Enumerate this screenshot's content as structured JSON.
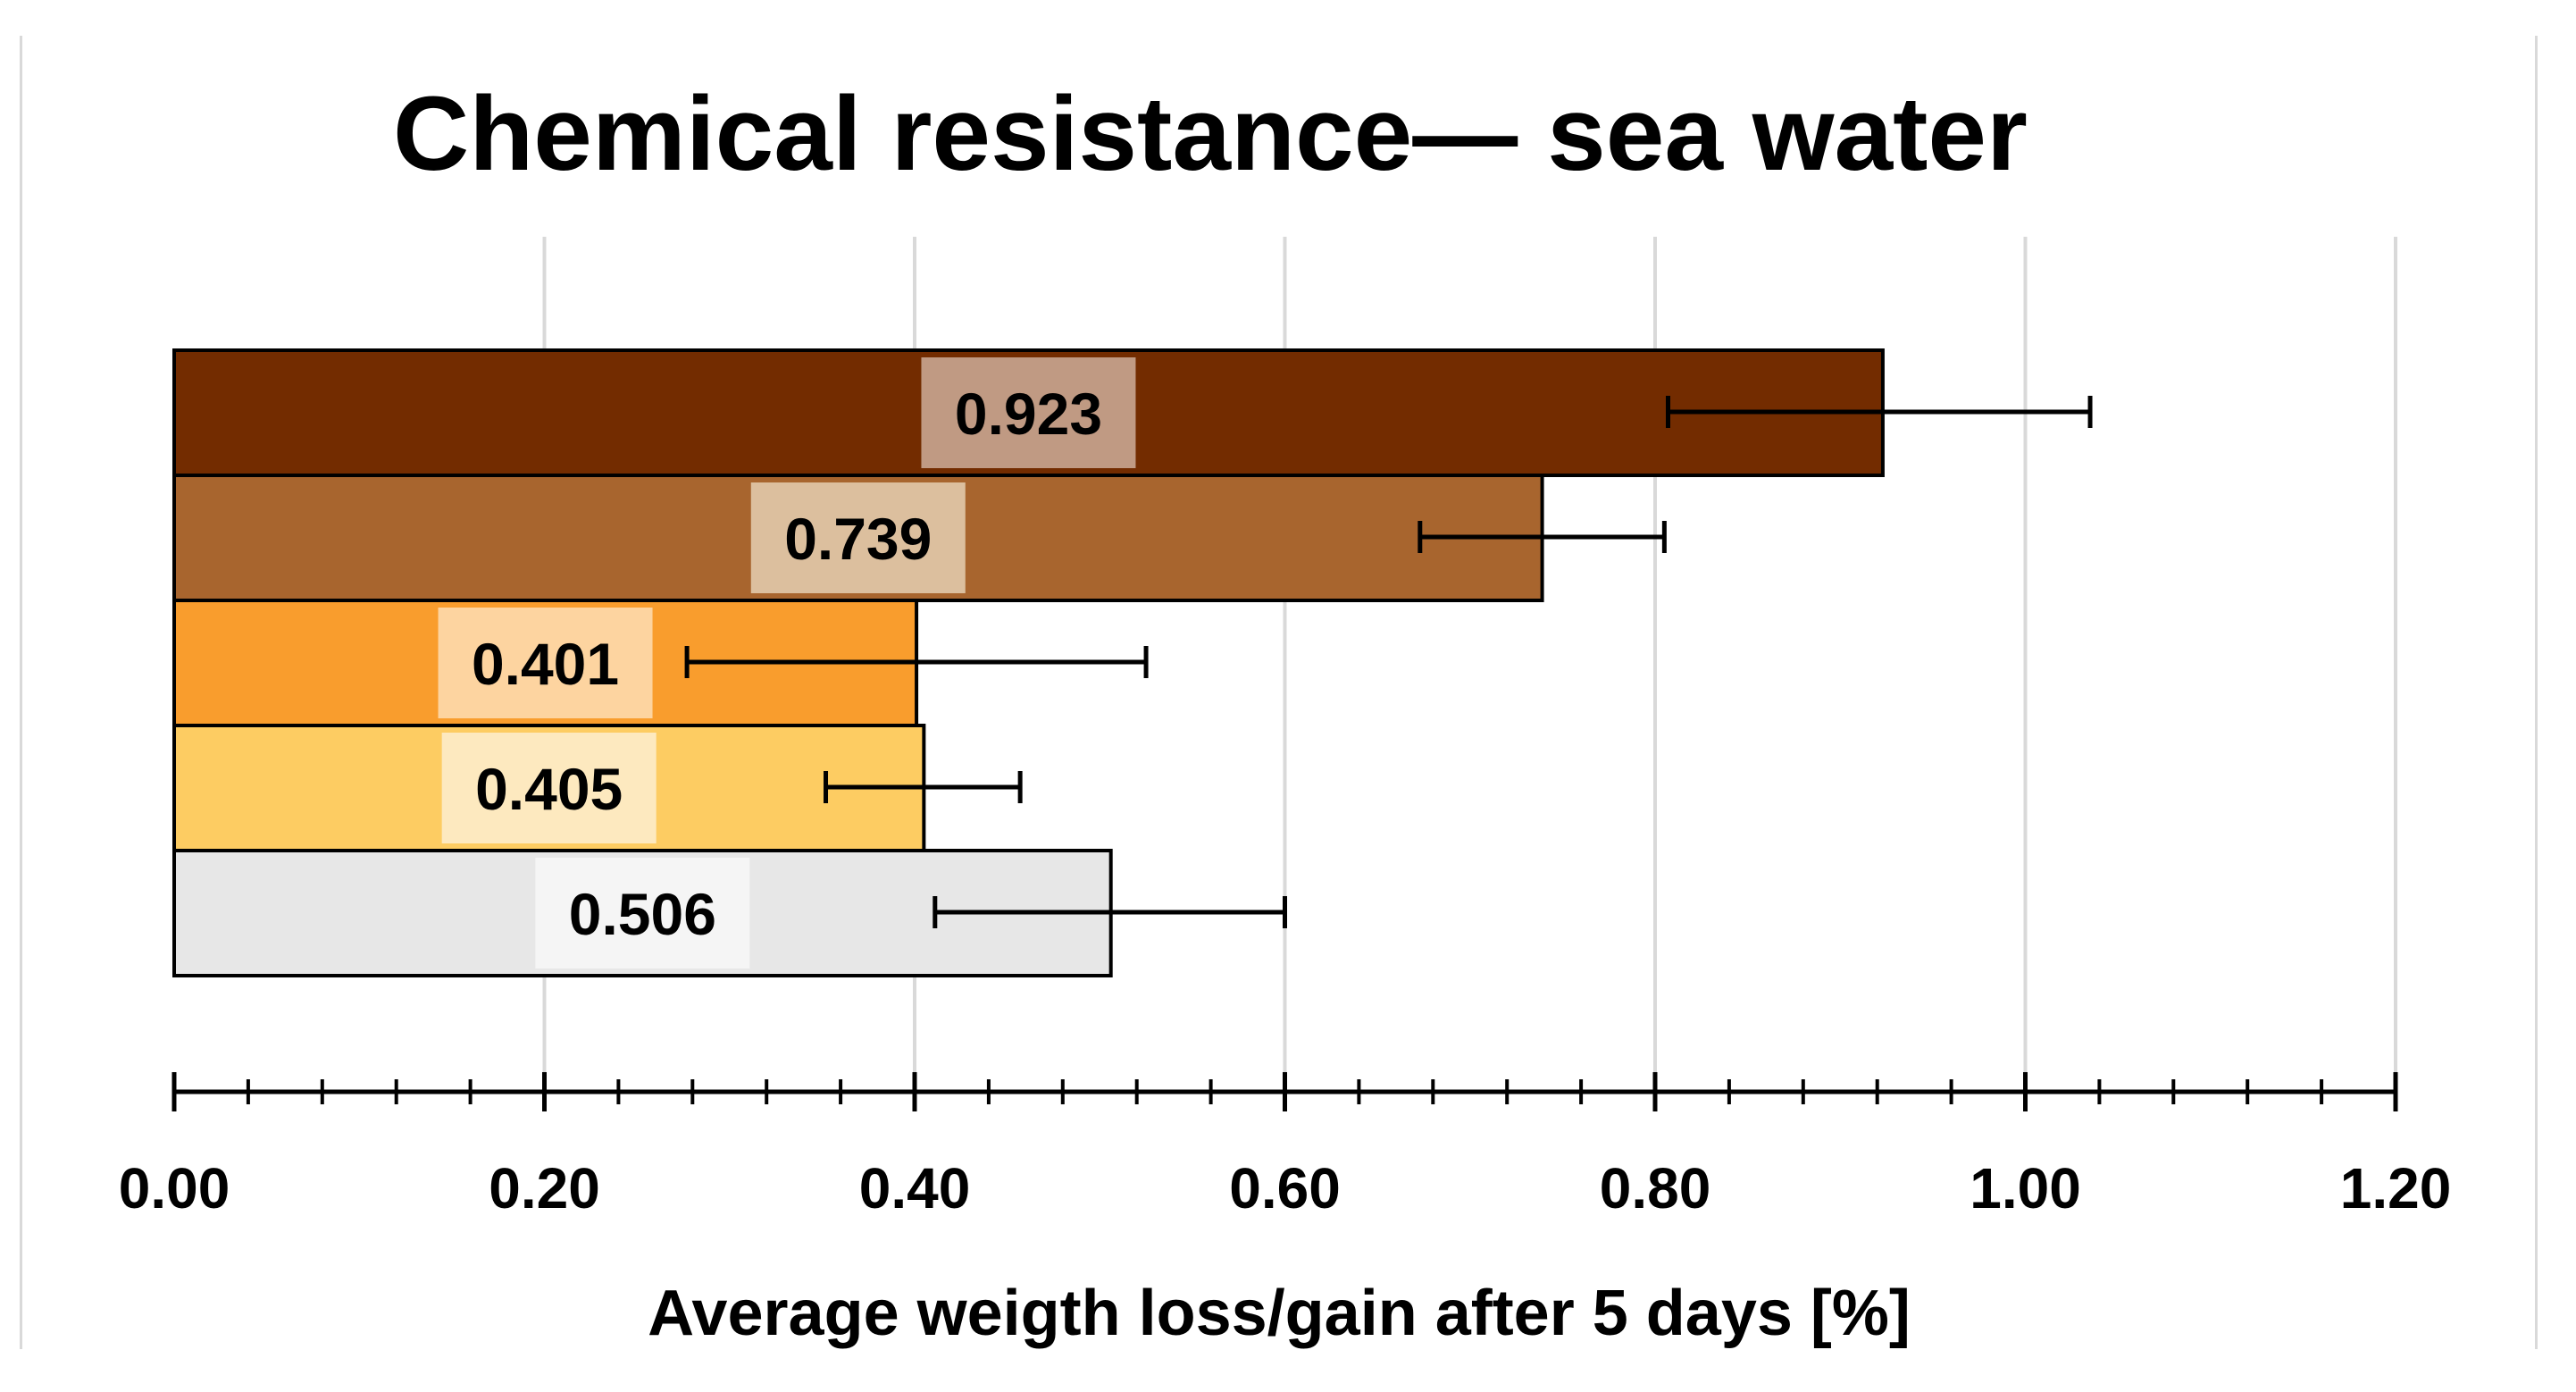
{
  "chart_data": {
    "type": "bar",
    "orientation": "horizontal",
    "title": "Chemical resistance— sea water",
    "xlabel": "Average weigth loss/gain after 5 days [%]",
    "ylabel": "",
    "xlim": [
      0,
      1.2
    ],
    "grid": true,
    "legend": "none",
    "tick_labels": [
      "0.00",
      "0.20",
      "0.40",
      "0.60",
      "0.80",
      "1.00",
      "1.20"
    ],
    "tick_values": [
      0,
      0.2,
      0.4,
      0.6,
      0.8,
      1.0,
      1.2
    ],
    "minor_tick_step": 0.04,
    "bars": [
      {
        "value": 0.923,
        "label": "0.923",
        "error_low": 0.807,
        "error_high": 1.035,
        "color": "#732c00",
        "label_bg": "#c09a83"
      },
      {
        "value": 0.739,
        "label": "0.739",
        "error_low": 0.673,
        "error_high": 0.805,
        "color": "#a8652e",
        "label_bg": "#dcbf9e"
      },
      {
        "value": 0.401,
        "label": "0.401",
        "error_low": 0.277,
        "error_high": 0.525,
        "color": "#f99d2d",
        "label_bg": "#fdd4a0"
      },
      {
        "value": 0.405,
        "label": "0.405",
        "error_low": 0.352,
        "error_high": 0.457,
        "color": "#fdcc62",
        "label_bg": "#fde9bf"
      },
      {
        "value": 0.506,
        "label": "0.506",
        "error_low": 0.411,
        "error_high": 0.6,
        "color": "#e7e7e7",
        "label_bg": "#f5f5f5"
      }
    ]
  }
}
